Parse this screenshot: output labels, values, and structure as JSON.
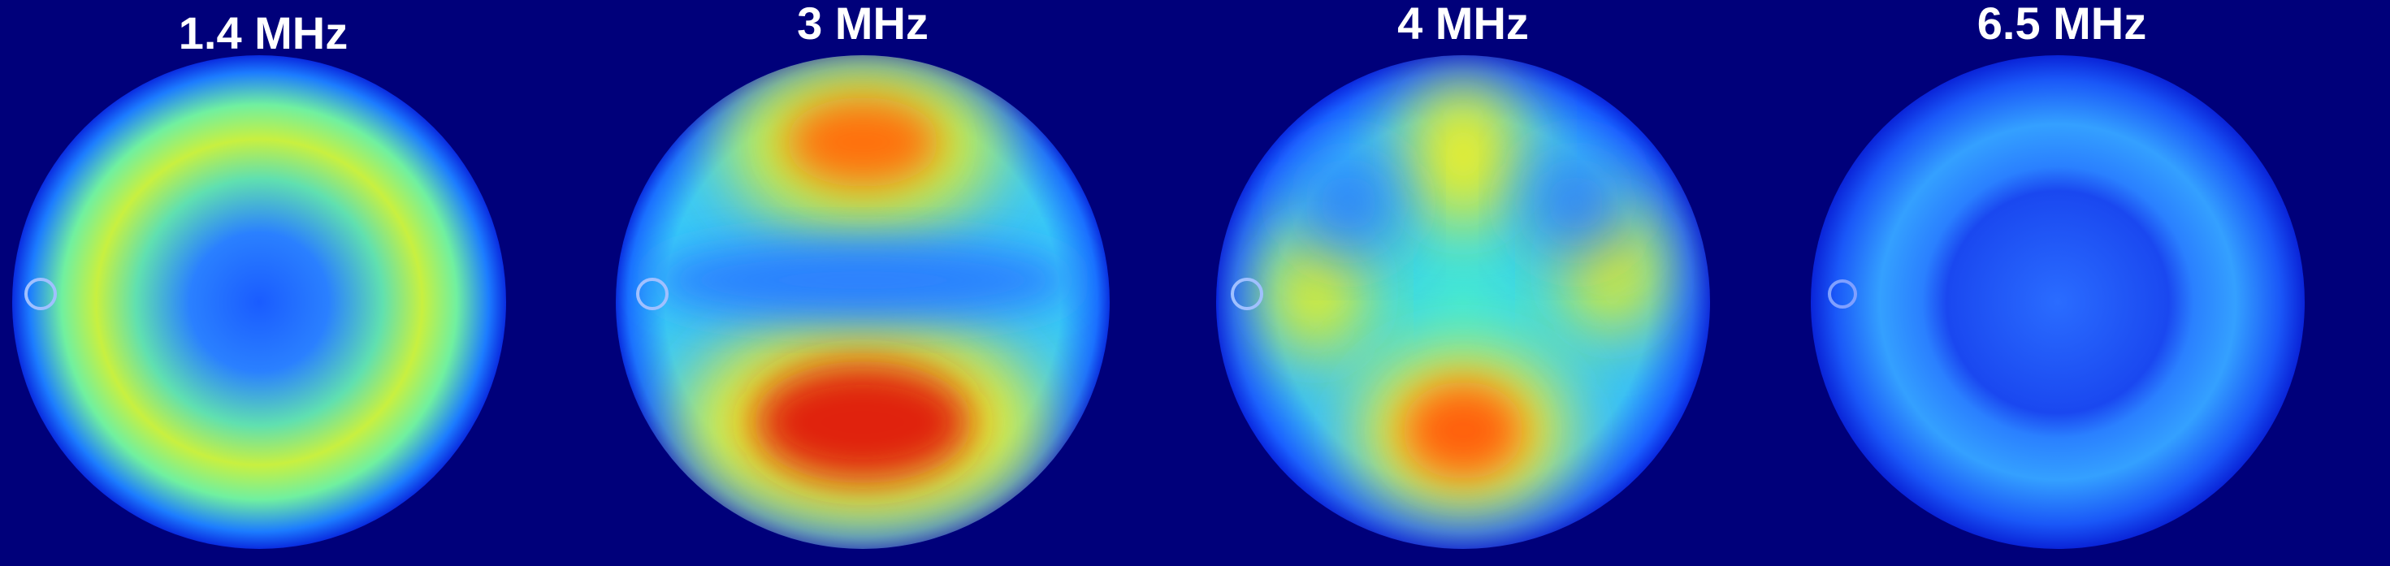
{
  "panels": [
    {
      "label": "1.4 MHz"
    },
    {
      "label": "3 MHz"
    },
    {
      "label": "4 MHz"
    },
    {
      "label": "6.5 MHz"
    }
  ]
}
